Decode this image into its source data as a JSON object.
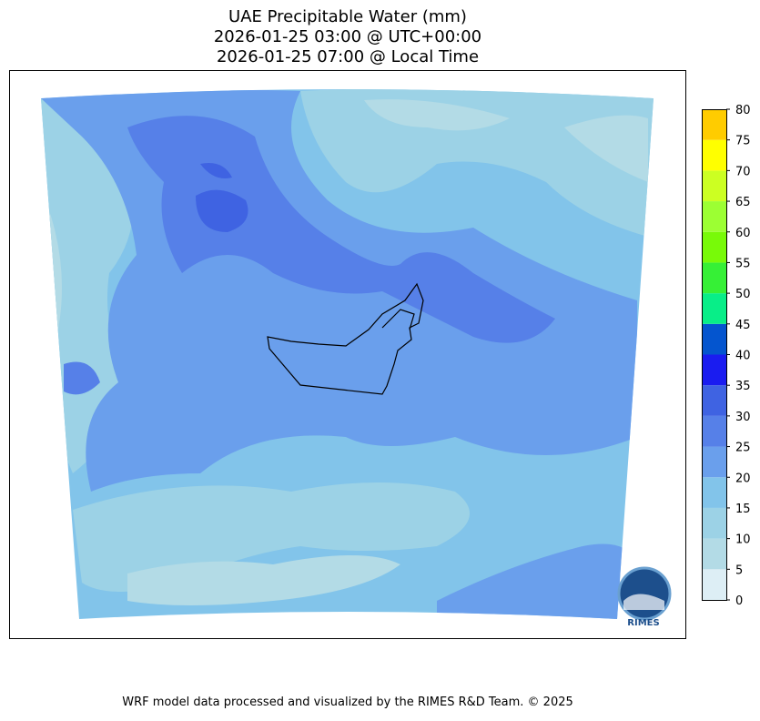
{
  "title": [
    "UAE Precipitable Water (mm)",
    "2026-01-25 03:00 @ UTC+00:00",
    "2026-01-25 07:00 @ Local Time"
  ],
  "colorbar": {
    "ticks": [
      0,
      5,
      10,
      15,
      20,
      25,
      30,
      35,
      40,
      45,
      50,
      55,
      60,
      65,
      70,
      75,
      80
    ],
    "colors": [
      "#ddeef5",
      "#b3dbe6",
      "#9cd2e6",
      "#82c4ea",
      "#6a9fec",
      "#5680e8",
      "#3f63e2",
      "#1a1cf0",
      "#0455cf",
      "#08ee88",
      "#36f036",
      "#78fa08",
      "#9cff33",
      "#ccff22",
      "#ffff00",
      "#ffcc00"
    ]
  },
  "logo": "RIMES",
  "footer": "WRF model data processed and visualized by the RIMES R&D Team. © 2025"
}
